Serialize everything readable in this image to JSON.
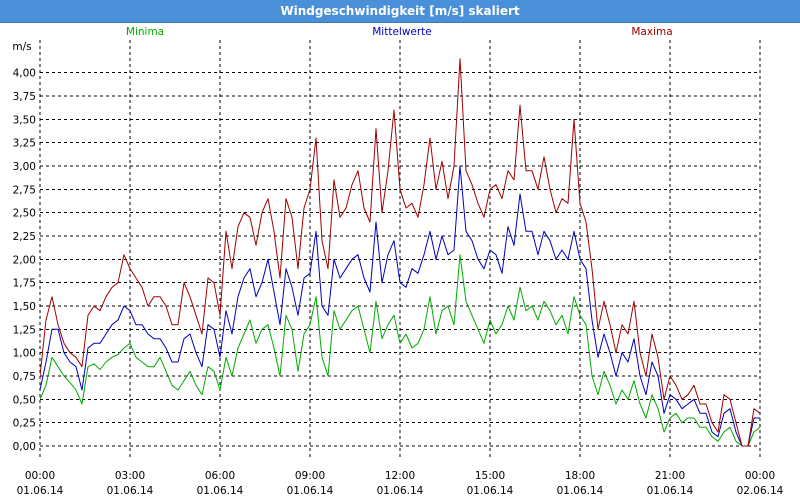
{
  "window": {
    "title": "Windgeschwindigkeit [m/s] skaliert"
  },
  "chart_data": {
    "type": "line",
    "title": "Windgeschwindigkeit [m/s] skaliert",
    "ylabel": "m/s",
    "xlabel": "",
    "ylim": [
      -0.15,
      4.35
    ],
    "xlim": [
      0,
      24
    ],
    "yticks": [
      0,
      0.25,
      0.5,
      0.75,
      1.0,
      1.25,
      1.5,
      1.75,
      2.0,
      2.25,
      2.5,
      2.75,
      3.0,
      3.25,
      3.5,
      3.75,
      4.0
    ],
    "ytick_labels": [
      "0,00",
      "0,25",
      "0,50",
      "0,75",
      "1,00",
      "1,25",
      "1,50",
      "1,75",
      "2,00",
      "2,25",
      "2,50",
      "2,75",
      "3,00",
      "3,25",
      "3,50",
      "3,75",
      "4,00"
    ],
    "xticks": [
      {
        "time": "00:00",
        "date": "01.06.14"
      },
      {
        "time": "03:00",
        "date": "01.06.14"
      },
      {
        "time": "06:00",
        "date": "01.06.14"
      },
      {
        "time": "09:00",
        "date": "01.06.14"
      },
      {
        "time": "12:00",
        "date": "01.06.14"
      },
      {
        "time": "15:00",
        "date": "01.06.14"
      },
      {
        "time": "18:00",
        "date": "01.06.14"
      },
      {
        "time": "21:00",
        "date": "01.06.14"
      },
      {
        "time": "00:00",
        "date": "02.06.14"
      }
    ],
    "grid": true,
    "legend_position": "top",
    "x_hours": [
      0,
      0.2,
      0.4,
      0.6,
      0.8,
      1,
      1.2,
      1.4,
      1.6,
      1.8,
      2,
      2.2,
      2.4,
      2.6,
      2.8,
      3,
      3.2,
      3.4,
      3.6,
      3.8,
      4,
      4.2,
      4.4,
      4.6,
      4.8,
      5,
      5.2,
      5.4,
      5.6,
      5.8,
      6,
      6.2,
      6.4,
      6.6,
      6.8,
      7,
      7.2,
      7.4,
      7.6,
      7.8,
      8,
      8.2,
      8.4,
      8.6,
      8.8,
      9,
      9.2,
      9.4,
      9.6,
      9.8,
      10,
      10.2,
      10.4,
      10.6,
      10.8,
      11,
      11.2,
      11.4,
      11.6,
      11.8,
      12,
      12.2,
      12.4,
      12.6,
      12.8,
      13,
      13.2,
      13.4,
      13.6,
      13.8,
      14,
      14.2,
      14.4,
      14.6,
      14.8,
      15,
      15.2,
      15.4,
      15.6,
      15.8,
      16,
      16.2,
      16.4,
      16.6,
      16.8,
      17,
      17.2,
      17.4,
      17.6,
      17.8,
      18,
      18.2,
      18.4,
      18.6,
      18.8,
      19,
      19.2,
      19.4,
      19.6,
      19.8,
      20,
      20.2,
      20.4,
      20.6,
      20.8,
      21,
      21.2,
      21.4,
      21.6,
      21.8,
      22,
      22.2,
      22.4,
      22.6,
      22.8,
      23,
      23.2,
      23.4,
      23.6,
      23.8,
      24
    ],
    "series": [
      {
        "name": "Minima",
        "color": "#00aa00",
        "values": [
          0.5,
          0.65,
          0.95,
          0.85,
          0.75,
          0.68,
          0.6,
          0.45,
          0.85,
          0.88,
          0.82,
          0.9,
          0.95,
          0.98,
          1.05,
          1.1,
          0.95,
          0.9,
          0.85,
          0.85,
          0.95,
          0.8,
          0.65,
          0.6,
          0.7,
          0.8,
          0.65,
          0.55,
          0.85,
          0.8,
          0.6,
          0.95,
          0.75,
          1.05,
          1.2,
          1.35,
          1.1,
          1.25,
          1.3,
          1.05,
          0.75,
          1.4,
          1.25,
          0.8,
          1.2,
          1.3,
          1.6,
          0.95,
          0.75,
          1.45,
          1.25,
          1.35,
          1.45,
          1.5,
          1.25,
          1.0,
          1.55,
          1.15,
          1.3,
          1.4,
          1.1,
          1.2,
          1.05,
          1.1,
          1.25,
          1.6,
          1.2,
          1.45,
          1.5,
          1.3,
          2.05,
          1.55,
          1.4,
          1.25,
          1.1,
          1.35,
          1.2,
          1.3,
          1.5,
          1.35,
          1.7,
          1.45,
          1.5,
          1.35,
          1.55,
          1.45,
          1.3,
          1.4,
          1.2,
          1.6,
          1.4,
          1.3,
          0.75,
          0.55,
          0.8,
          0.65,
          0.45,
          0.6,
          0.5,
          0.7,
          0.45,
          0.3,
          0.55,
          0.4,
          0.15,
          0.3,
          0.35,
          0.25,
          0.3,
          0.3,
          0.2,
          0.2,
          0.1,
          0.05,
          0.15,
          0.2,
          0.05,
          0.0,
          0.0,
          0.15,
          0.2
        ]
      },
      {
        "name": "Mittelwerte",
        "color": "#0000c0",
        "values": [
          0.6,
          0.9,
          1.25,
          1.25,
          1.0,
          0.9,
          0.85,
          0.6,
          1.05,
          1.1,
          1.1,
          1.2,
          1.3,
          1.35,
          1.5,
          1.45,
          1.3,
          1.3,
          1.2,
          1.15,
          1.15,
          1.05,
          0.9,
          0.9,
          1.15,
          1.2,
          1.0,
          0.85,
          1.3,
          1.25,
          0.95,
          1.45,
          1.2,
          1.6,
          1.8,
          1.9,
          1.6,
          1.75,
          2.0,
          1.65,
          1.3,
          1.9,
          1.7,
          1.4,
          1.8,
          1.85,
          2.3,
          1.5,
          1.4,
          2.0,
          1.8,
          1.9,
          2.0,
          2.05,
          1.8,
          1.65,
          2.4,
          1.75,
          2.05,
          2.2,
          1.75,
          1.7,
          1.9,
          1.85,
          2.05,
          2.3,
          2.0,
          2.25,
          2.05,
          2.1,
          3.0,
          2.3,
          2.2,
          2.0,
          1.9,
          2.1,
          2.05,
          1.85,
          2.35,
          2.15,
          2.7,
          2.3,
          2.3,
          2.05,
          2.3,
          2.2,
          2.0,
          2.1,
          2.0,
          2.3,
          2.0,
          1.9,
          1.35,
          0.95,
          1.2,
          1.0,
          0.75,
          1.0,
          0.9,
          1.15,
          0.75,
          0.55,
          0.9,
          0.75,
          0.35,
          0.55,
          0.5,
          0.4,
          0.45,
          0.5,
          0.35,
          0.35,
          0.15,
          0.1,
          0.35,
          0.4,
          0.15,
          0.0,
          0.0,
          0.3,
          0.3
        ]
      },
      {
        "name": "Maxima",
        "color": "#a00000",
        "values": [
          0.75,
          1.35,
          1.6,
          1.3,
          1.1,
          1.0,
          0.95,
          0.85,
          1.4,
          1.5,
          1.45,
          1.6,
          1.7,
          1.75,
          2.05,
          1.9,
          1.8,
          1.7,
          1.5,
          1.6,
          1.6,
          1.5,
          1.3,
          1.3,
          1.75,
          1.6,
          1.4,
          1.2,
          1.8,
          1.75,
          1.4,
          2.3,
          1.9,
          2.35,
          2.5,
          2.45,
          2.15,
          2.5,
          2.65,
          2.3,
          1.8,
          2.65,
          2.45,
          1.9,
          2.55,
          2.75,
          3.3,
          2.2,
          1.9,
          2.85,
          2.45,
          2.55,
          2.8,
          2.95,
          2.55,
          2.4,
          3.4,
          2.5,
          2.95,
          3.6,
          2.75,
          2.55,
          2.6,
          2.45,
          2.8,
          3.3,
          2.75,
          3.05,
          2.65,
          3.0,
          4.15,
          2.95,
          2.8,
          2.6,
          2.45,
          2.75,
          2.8,
          2.65,
          2.95,
          2.85,
          3.65,
          2.95,
          2.95,
          2.75,
          3.1,
          2.75,
          2.5,
          2.65,
          2.6,
          3.5,
          2.6,
          2.4,
          1.9,
          1.25,
          1.55,
          1.3,
          1.0,
          1.3,
          1.2,
          1.55,
          1.0,
          0.75,
          1.2,
          0.95,
          0.5,
          0.75,
          0.65,
          0.5,
          0.55,
          0.65,
          0.45,
          0.45,
          0.25,
          0.15,
          0.55,
          0.5,
          0.25,
          0.0,
          0.0,
          0.4,
          0.35
        ]
      }
    ]
  }
}
